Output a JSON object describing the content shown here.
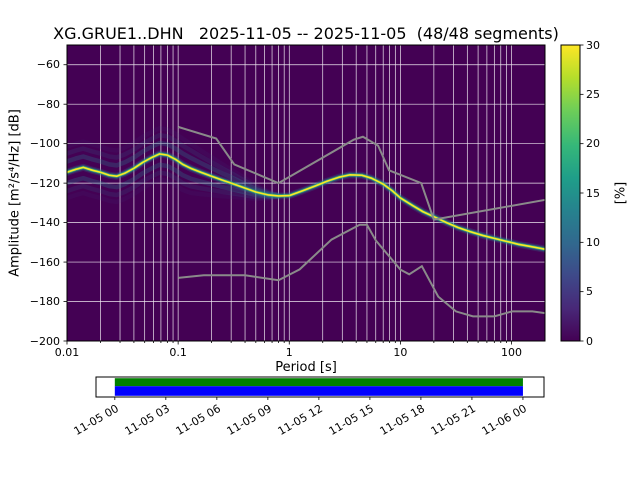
{
  "chart_data": {
    "type": "heatmap",
    "title": "XG.GRUE1..DHN   2025-11-05 -- 2025-11-05  (48/48 segments)",
    "xlabel": "Period [s]",
    "ylabel": "Amplitude [m²/s⁴/Hz] [dB]",
    "colorbar_label": "[%]",
    "x_scale": "log",
    "xlim": [
      0.01,
      200
    ],
    "ylim": [
      -200,
      -50
    ],
    "x_ticks": [
      0.01,
      0.1,
      1,
      10,
      100
    ],
    "x_tick_labels": [
      "0.01",
      "0.1",
      "1",
      "10",
      "100"
    ],
    "y_ticks": [
      -60,
      -80,
      -100,
      -120,
      -140,
      -160,
      -180,
      -200
    ],
    "y_tick_labels": [
      "−60",
      "−80",
      "−100",
      "−120",
      "−140",
      "−160",
      "−180",
      "−200"
    ],
    "background_color": "#440154",
    "grid_color": "#ffffff",
    "colorbar": {
      "lim": [
        0,
        30
      ],
      "ticks": [
        0,
        5,
        10,
        15,
        20,
        25,
        30
      ],
      "tick_labels": [
        "0",
        "5",
        "10",
        "15",
        "20",
        "25",
        "30"
      ],
      "gradient": [
        [
          0,
          "#440154"
        ],
        [
          0.11,
          "#482878"
        ],
        [
          0.22,
          "#3e4989"
        ],
        [
          0.33,
          "#31688e"
        ],
        [
          0.44,
          "#26828e"
        ],
        [
          0.55,
          "#1f9e89"
        ],
        [
          0.66,
          "#35b779"
        ],
        [
          0.78,
          "#6ece58"
        ],
        [
          0.89,
          "#b5de2b"
        ],
        [
          1,
          "#fde725"
        ]
      ]
    },
    "psd_mode": {
      "percent_peak": 30,
      "periods": [
        0.01,
        0.012,
        0.014,
        0.017,
        0.02,
        0.024,
        0.028,
        0.033,
        0.04,
        0.048,
        0.058,
        0.068,
        0.08,
        0.095,
        0.11,
        0.13,
        0.16,
        0.2,
        0.25,
        0.3,
        0.4,
        0.5,
        0.65,
        0.8,
        1.0,
        1.3,
        1.7,
        2.2,
        2.8,
        3.5,
        4.5,
        5.5,
        7.0,
        8.5,
        10.0,
        13.0,
        16.0,
        20.0,
        26.0,
        33.0,
        42.0,
        55.0,
        70.0,
        90.0,
        115,
        145,
        180,
        200
      ],
      "db": [
        -114.5,
        -113.0,
        -112.0,
        -113.5,
        -114.5,
        -116.0,
        -116.5,
        -115.0,
        -112.5,
        -109.5,
        -107.0,
        -105.2,
        -105.8,
        -108.0,
        -110.5,
        -112.5,
        -114.5,
        -116.5,
        -118.5,
        -120.0,
        -122.5,
        -124.5,
        -126.0,
        -126.5,
        -126.3,
        -124.0,
        -121.5,
        -119.0,
        -117.0,
        -115.8,
        -116.0,
        -117.5,
        -120.5,
        -124.0,
        -127.5,
        -131.5,
        -134.5,
        -137.0,
        -140.0,
        -142.5,
        -144.5,
        -146.5,
        -148.0,
        -149.5,
        -151.0,
        -152.0,
        -153.0,
        -153.5
      ]
    },
    "noise_models": {
      "color": "#8a8a8a",
      "nhnm": {
        "periods": [
          0.1,
          0.22,
          0.32,
          0.8,
          3.8,
          4.6,
          6.3,
          7.9,
          15.4,
          20.0,
          354.8
        ],
        "db": [
          -91.5,
          -97.4,
          -110.5,
          -120.0,
          -98.0,
          -96.5,
          -101.0,
          -113.5,
          -120.0,
          -138.5,
          -126.0
        ]
      },
      "nlnm": {
        "periods": [
          0.1,
          0.17,
          0.4,
          0.8,
          1.24,
          2.4,
          4.3,
          5.0,
          6.0,
          10.0,
          12.0,
          15.6,
          21.9,
          31.6,
          45.0,
          70.0,
          101.0,
          154.0,
          328.0
        ],
        "db": [
          -168.0,
          -166.7,
          -166.7,
          -169.2,
          -163.7,
          -148.6,
          -141.1,
          -141.1,
          -149.0,
          -163.8,
          -166.2,
          -162.1,
          -177.5,
          -185.0,
          -187.5,
          -187.5,
          -185.0,
          -185.0,
          -187.5
        ]
      }
    },
    "timeline": {
      "tick_labels": [
        "11-05 00",
        "11-05 03",
        "11-05 06",
        "11-05 09",
        "11-05 12",
        "11-05 15",
        "11-05 18",
        "11-05 21",
        "11-06 00"
      ],
      "coverage": {
        "start_frac": 0.042,
        "end_frac": 0.953,
        "top_color": "#008000",
        "bottom_color": "#0000ff"
      }
    }
  }
}
